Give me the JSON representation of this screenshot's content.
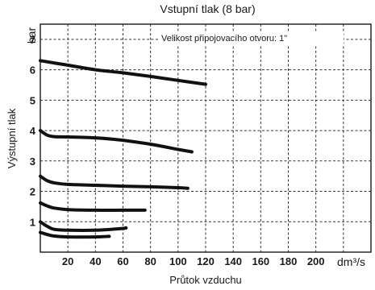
{
  "chart_data": {
    "type": "line",
    "title": "Vstupní tlak (8 bar)",
    "annotation": "Velikost připojovacího otvoru: 1\"",
    "xlabel": "Průtok vzduchu",
    "ylabel": "Výstupní tlak",
    "xunit": "dm³/s",
    "yunit": "bar",
    "xlim": [
      0,
      240
    ],
    "ylim": [
      0,
      7.5
    ],
    "x_ticks": [
      20,
      40,
      60,
      80,
      100,
      120,
      140,
      160,
      180,
      200
    ],
    "y_ticks": [
      1,
      2,
      3,
      4,
      5,
      6,
      7
    ],
    "grid": true,
    "series": [
      {
        "x": [
          0,
          20,
          40,
          60,
          80,
          100,
          120
        ],
        "y": [
          6.3,
          6.15,
          6.0,
          5.9,
          5.78,
          5.65,
          5.52
        ]
      },
      {
        "x": [
          0,
          5,
          10,
          20,
          40,
          60,
          80,
          100,
          110
        ],
        "y": [
          4.0,
          3.85,
          3.8,
          3.79,
          3.76,
          3.68,
          3.55,
          3.38,
          3.3
        ]
      },
      {
        "x": [
          0,
          5,
          10,
          20,
          40,
          60,
          80,
          100,
          107
        ],
        "y": [
          2.5,
          2.35,
          2.28,
          2.23,
          2.2,
          2.17,
          2.15,
          2.12,
          2.1
        ]
      },
      {
        "x": [
          0,
          5,
          10,
          20,
          40,
          60,
          76
        ],
        "y": [
          1.62,
          1.52,
          1.45,
          1.4,
          1.38,
          1.38,
          1.38
        ]
      },
      {
        "x": [
          0,
          5,
          10,
          20,
          40,
          60,
          62
        ],
        "y": [
          1.0,
          0.85,
          0.75,
          0.72,
          0.72,
          0.78,
          0.8
        ]
      },
      {
        "x": [
          0,
          5,
          10,
          20,
          40,
          50
        ],
        "y": [
          0.65,
          0.58,
          0.53,
          0.5,
          0.5,
          0.52
        ]
      }
    ]
  }
}
